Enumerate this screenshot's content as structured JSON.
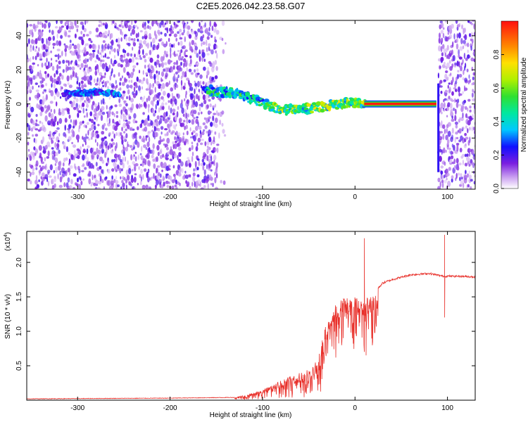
{
  "chart_data": [
    {
      "type": "heatmap",
      "title": "C2E5.2026.042.23.58.G07",
      "xlabel": "Height of straight line (km)",
      "ylabel": "Frequency (Hz)",
      "xlim": [
        -355,
        130
      ],
      "ylim": [
        -50,
        49
      ],
      "xticks": [
        -300,
        -200,
        -100,
        0,
        100
      ],
      "yticks": [
        -40,
        -20,
        0,
        20,
        40
      ],
      "colorbar": {
        "label": "Normalized spectral amplitude",
        "range": [
          0.0,
          1.0
        ],
        "ticks": [
          0.0,
          0.2,
          0.4,
          0.6,
          0.8
        ],
        "colormap": "rainbow (white/violet low to red high)"
      },
      "features": {
        "noise_region_left_km": [
          -355,
          -150
        ],
        "signal_trace": [
          {
            "x": -310,
            "y": 6
          },
          {
            "x": -280,
            "y": 7
          },
          {
            "x": -260,
            "y": 6
          },
          {
            "x": -160,
            "y": 8
          },
          {
            "x": -130,
            "y": 6
          },
          {
            "x": -100,
            "y": 1
          },
          {
            "x": -80,
            "y": -4
          },
          {
            "x": -60,
            "y": -3
          },
          {
            "x": -40,
            "y": -2
          },
          {
            "x": -20,
            "y": 0
          },
          {
            "x": 0,
            "y": 1
          },
          {
            "x": 10,
            "y": 0
          },
          {
            "x": 88,
            "y": 0
          }
        ],
        "constant_tone_km": [
          10,
          88
        ],
        "constant_tone_freq_hz": 0,
        "noise_region_right_km": [
          90,
          130
        ]
      }
    },
    {
      "type": "line",
      "title": "",
      "xlabel": "Height of straight line (km)",
      "ylabel": "SNR (10 * v/v)",
      "ylabel_scale": "(x10",
      "ylabel_scale_exp": "4",
      "xlim": [
        -355,
        130
      ],
      "ylim": [
        0.0,
        2.45
      ],
      "xticks": [
        -300,
        -200,
        -100,
        0,
        100
      ],
      "yticks": [
        0.5,
        1.0,
        1.5,
        2.0
      ],
      "series": [
        {
          "name": "SNR",
          "color": "#e8302a",
          "envelope": [
            {
              "x": -355,
              "y": 0.02
            },
            {
              "x": -200,
              "y": 0.03
            },
            {
              "x": -130,
              "y": 0.04
            },
            {
              "x": -100,
              "y": 0.15
            },
            {
              "x": -70,
              "y": 0.35
            },
            {
              "x": -50,
              "y": 0.45
            },
            {
              "x": -40,
              "y": 0.6
            },
            {
              "x": -30,
              "y": 1.2
            },
            {
              "x": -20,
              "y": 1.4
            },
            {
              "x": -10,
              "y": 1.5
            },
            {
              "x": 0,
              "y": 1.5
            },
            {
              "x": 10,
              "y": 1.45
            },
            {
              "x": 20,
              "y": 1.55
            },
            {
              "x": 30,
              "y": 1.7
            },
            {
              "x": 40,
              "y": 1.75
            },
            {
              "x": 60,
              "y": 1.82
            },
            {
              "x": 80,
              "y": 1.84
            },
            {
              "x": 95,
              "y": 1.8
            },
            {
              "x": 110,
              "y": 1.8
            },
            {
              "x": 130,
              "y": 1.79
            }
          ],
          "spikes": [
            {
              "x": 10,
              "y": 2.35
            },
            {
              "x": 12,
              "y": 0.65
            },
            {
              "x": 97,
              "y": 2.4
            },
            {
              "x": 97,
              "y": 1.2
            }
          ]
        }
      ]
    }
  ]
}
